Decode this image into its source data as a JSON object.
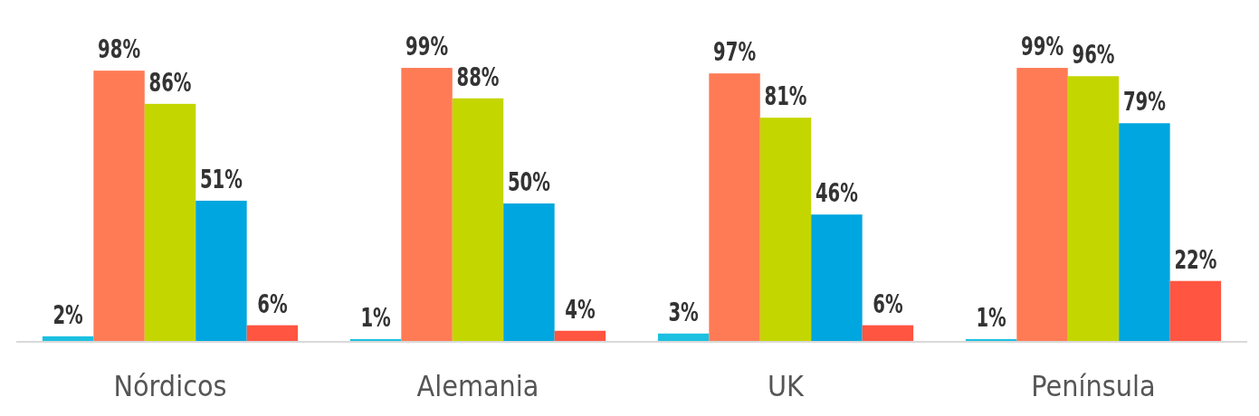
{
  "chart_data": {
    "type": "bar",
    "categories": [
      "Nórdicos",
      "Alemania",
      "UK",
      "Península"
    ],
    "ylim": [
      0,
      100
    ],
    "tick_labels": "x",
    "series": [
      {
        "color": "#1cc0e0",
        "values": [
          2,
          1,
          3,
          1
        ],
        "value_labels": [
          "2%",
          "1%",
          "3%",
          "1%"
        ]
      },
      {
        "color": "#ff7b55",
        "values": [
          98,
          99,
          97,
          99
        ],
        "value_labels": [
          "98%",
          "99%",
          "97%",
          "99%"
        ]
      },
      {
        "color": "#c4d600",
        "values": [
          86,
          88,
          81,
          96
        ],
        "value_labels": [
          "86%",
          "88%",
          "81%",
          "96%"
        ]
      },
      {
        "color": "#00a6df",
        "values": [
          51,
          50,
          46,
          79
        ],
        "value_labels": [
          "51%",
          "50%",
          "46%",
          "79%"
        ]
      },
      {
        "color": "#ff5541",
        "values": [
          6,
          4,
          6,
          22
        ],
        "value_labels": [
          "6%",
          "4%",
          "6%",
          "22%"
        ]
      }
    ]
  }
}
